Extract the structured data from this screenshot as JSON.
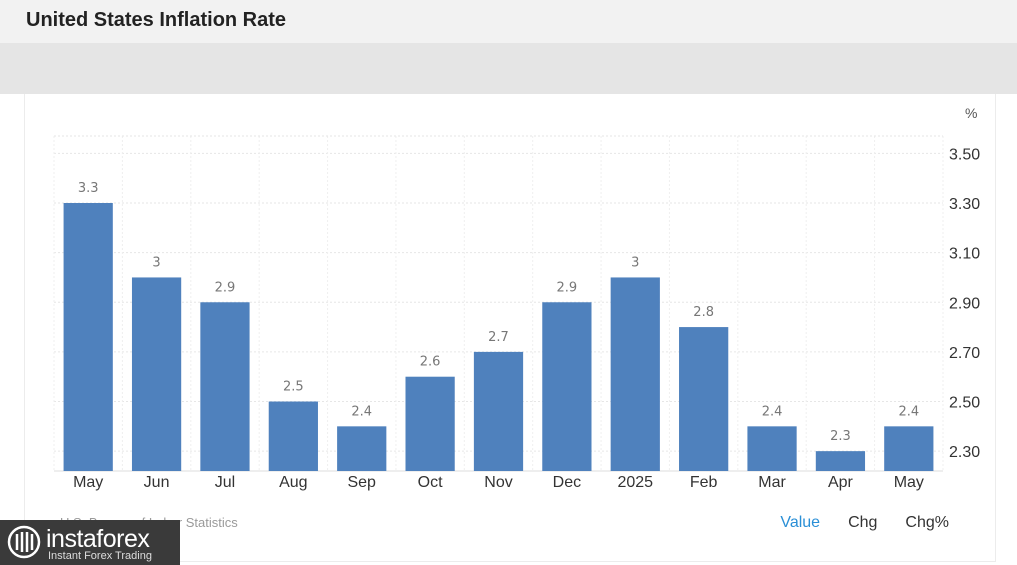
{
  "header": {
    "title": "United States Inflation Rate"
  },
  "chart_data": {
    "type": "bar",
    "categories": [
      "May",
      "Jun",
      "Jul",
      "Aug",
      "Sep",
      "Oct",
      "Nov",
      "Dec",
      "2025",
      "Feb",
      "Mar",
      "Apr",
      "May"
    ],
    "values": [
      3.3,
      3,
      2.9,
      2.5,
      2.4,
      2.6,
      2.7,
      2.9,
      3,
      2.8,
      2.4,
      2.3,
      2.4
    ],
    "value_labels": [
      "3.3",
      "3",
      "2.9",
      "2.5",
      "2.4",
      "2.6",
      "2.7",
      "2.9",
      "3",
      "2.8",
      "2.4",
      "2.3",
      "2.4"
    ],
    "y_unit": "%",
    "y_ticks": [
      "3.50",
      "3.30",
      "3.10",
      "2.90",
      "2.70",
      "2.50",
      "2.30"
    ],
    "y_tick_values": [
      3.5,
      3.3,
      3.1,
      2.9,
      2.7,
      2.5,
      2.3
    ],
    "ylim": [
      2.22,
      3.57
    ],
    "y_axis_side": "right",
    "grid": true,
    "bar_color": "#4f81bd"
  },
  "footer": {
    "source": "U.S. Bureau of Labor Statistics",
    "tabs": [
      "Value",
      "Chg",
      "Chg%"
    ],
    "active_tab": "Value"
  },
  "brand": {
    "name": "instaforex",
    "tagline": "Instant Forex Trading"
  },
  "colors": {
    "accent": "#2a8fd6",
    "bar": "#4f81bd"
  }
}
